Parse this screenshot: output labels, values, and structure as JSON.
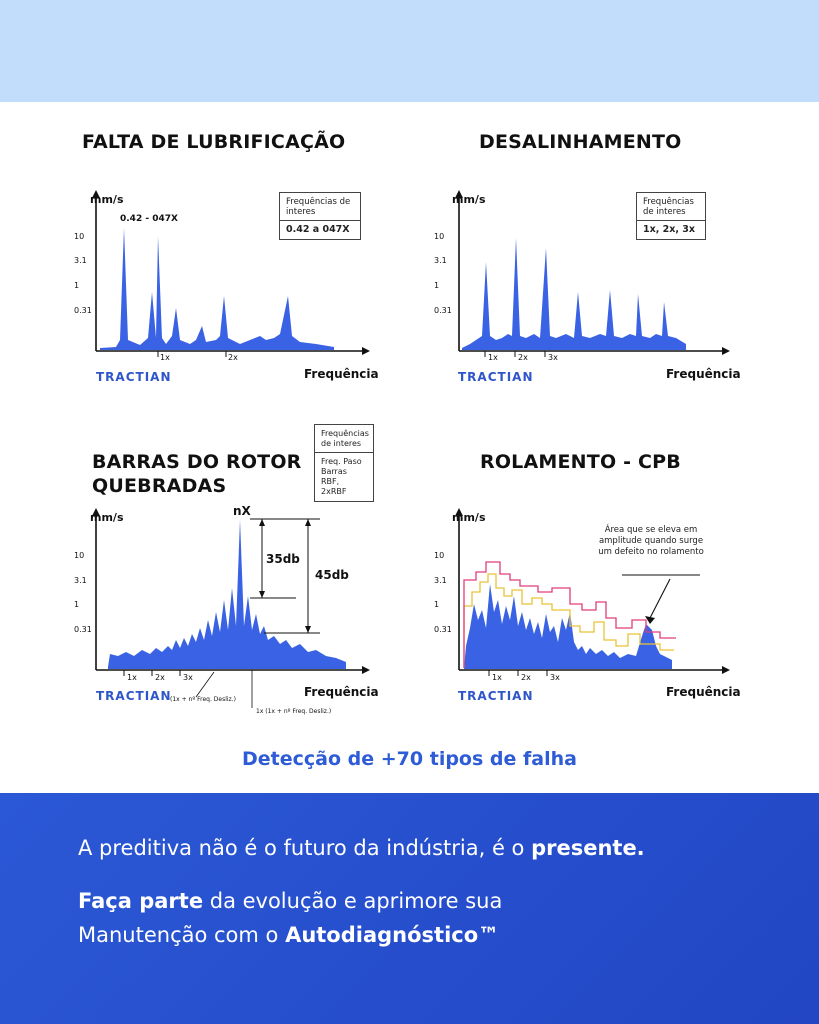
{
  "colors": {
    "accent": "#2e5bd6",
    "top_band": "#c2dcfb",
    "bottom_band": "#2452cc",
    "fill": "#3a62e4",
    "pink": "#e23d7a",
    "yellow": "#e9c238"
  },
  "brand": "TRACTIAN",
  "panels": {
    "lubrificacao": {
      "title": "FALTA DE LUBRIFICAÇÃO",
      "ylabel": "mm/s",
      "xlabel": "Frequência",
      "yticks": [
        "10",
        "3.1",
        "1",
        "0.31"
      ],
      "xticks": [
        "1x",
        "2x"
      ],
      "annotation": "0.42 - 047X",
      "box_head": "Frequências de interes",
      "box_value": "0.42 a 047X"
    },
    "desalinhamento": {
      "title": "DESALINHAMENTO",
      "ylabel": "mm/s",
      "xlabel": "Frequência",
      "yticks": [
        "10",
        "3.1",
        "1",
        "0.31"
      ],
      "xticks": [
        "1x",
        "2x",
        "3x"
      ],
      "box_head": "Frequências de interes",
      "box_value": "1x, 2x, 3x"
    },
    "rotor": {
      "title_line1": "BARRAS DO ROTOR",
      "title_line2": "QUEBRADAS",
      "ylabel": "mm/s",
      "xlabel": "Frequência",
      "yticks": [
        "10",
        "3.1",
        "1",
        "0.31"
      ],
      "xticks": [
        "1x",
        "2x",
        "3x"
      ],
      "peak_label": "nX",
      "dim1": "35db",
      "dim2": "45db",
      "note1": "(1x + nº Freq. Desliz.)",
      "note2": "1x (1x + nº Freq. Desliz.)",
      "box_head": "Frequências de interes",
      "box_value": "Freq. Paso Barras RBF, 2xRBF"
    },
    "rolamento": {
      "title": "ROLAMENTO - CPB",
      "ylabel": "mm/s",
      "xlabel": "Frequência",
      "yticks": [
        "10",
        "3.1",
        "1",
        "0.31"
      ],
      "xticks": [
        "1x",
        "2x",
        "3x"
      ],
      "note": "Área que se eleva em amplitude quando surge um defeito no rolamento"
    }
  },
  "tagline": "Detecção de +70 tipos de falha",
  "bottom": {
    "line1_a": "A preditiva não é o futuro da indústria, é o ",
    "line1_b": "presente.",
    "line2_a": "Faça parte",
    "line2_b": " da evolução e aprimore sua",
    "line3_a": "Manutenção com o ",
    "line3_b": "Autodiagnóstico™"
  }
}
